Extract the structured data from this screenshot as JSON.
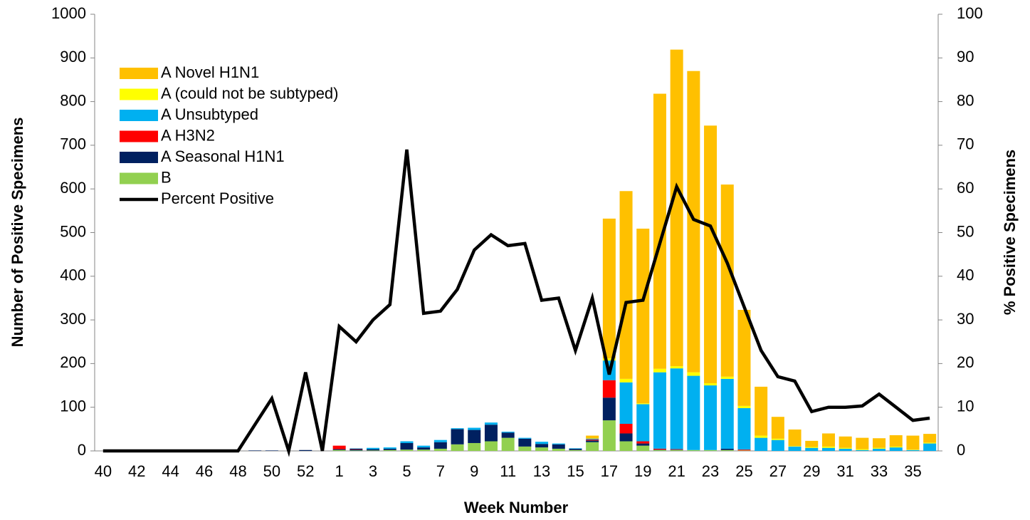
{
  "chart_data": {
    "type": "bar-line",
    "x_label": "Week Number",
    "y_label": "Number of Positive Specimens",
    "y2_label": "% Positive Specimens",
    "categories": [
      "40",
      null,
      "42",
      null,
      "44",
      null,
      "46",
      null,
      "48",
      null,
      "50",
      null,
      "52",
      null,
      "1",
      null,
      "3",
      null,
      "5",
      null,
      "7",
      null,
      "9",
      null,
      "11",
      null,
      "13",
      null,
      "15",
      null,
      "17",
      null,
      "19",
      null,
      "21",
      null,
      "23",
      null,
      "25",
      null,
      "27",
      null,
      "29",
      null,
      "31",
      null,
      "33",
      null,
      "35",
      null
    ],
    "ylim": [
      0,
      1000
    ],
    "yticks": [
      0,
      100,
      200,
      300,
      400,
      500,
      600,
      700,
      800,
      900,
      1000
    ],
    "y2lim": [
      0,
      100
    ],
    "y2ticks": [
      0,
      10,
      20,
      30,
      40,
      50,
      60,
      70,
      80,
      90,
      100
    ],
    "stacked": true,
    "legend": "upper left",
    "series": [
      {
        "name": "A Novel H1N1",
        "color": "#FFC000",
        "kind": "bar",
        "values": [
          0,
          0,
          0,
          0,
          0,
          0,
          0,
          0,
          0,
          0,
          0,
          0,
          0,
          0,
          0,
          0,
          0,
          0,
          0,
          0,
          0,
          0,
          0,
          0,
          0,
          0,
          0,
          0,
          0,
          7,
          320,
          430,
          400,
          630,
          725,
          690,
          590,
          440,
          220,
          112,
          50,
          38,
          14,
          30,
          26,
          26,
          22,
          26,
          32,
          20
        ]
      },
      {
        "name": "A (could not be subtyped)",
        "color": "#FFFF00",
        "kind": "bar",
        "values": [
          0,
          0,
          0,
          0,
          0,
          0,
          0,
          0,
          0,
          0,
          0,
          0,
          0,
          0,
          0,
          0,
          0,
          0,
          0,
          0,
          0,
          0,
          0,
          0,
          0,
          0,
          0,
          0,
          0,
          0,
          5,
          8,
          2,
          8,
          5,
          8,
          5,
          5,
          5,
          5,
          3,
          1,
          2,
          3,
          2,
          2,
          2,
          2,
          1,
          2
        ]
      },
      {
        "name": "A Unsubtyped",
        "color": "#00B0F0",
        "kind": "bar",
        "values": [
          0,
          0,
          0,
          0,
          0,
          0,
          0,
          0,
          0,
          0,
          0,
          0,
          0,
          0,
          0,
          1,
          3,
          3,
          4,
          4,
          5,
          2,
          5,
          5,
          2,
          2,
          5,
          2,
          1,
          2,
          45,
          95,
          85,
          175,
          185,
          170,
          148,
          160,
          95,
          30,
          25,
          10,
          7,
          7,
          5,
          2,
          5,
          8,
          2,
          17
        ]
      },
      {
        "name": "A H3N2",
        "color": "#FF0000",
        "kind": "bar",
        "values": [
          0,
          0,
          0,
          0,
          0,
          0,
          0,
          0,
          0,
          0,
          0,
          0,
          0,
          0,
          8,
          1,
          0,
          0,
          0,
          0,
          0,
          0,
          0,
          0,
          0,
          0,
          0,
          0,
          0,
          2,
          40,
          22,
          5,
          2,
          1,
          0,
          0,
          0,
          2,
          0,
          0,
          0,
          0,
          0,
          0,
          0,
          0,
          0,
          0,
          0
        ]
      },
      {
        "name": "A Seasonal H1N1",
        "color": "#002060",
        "kind": "bar",
        "values": [
          0,
          0,
          0,
          0,
          0,
          0,
          0,
          0,
          0,
          1,
          1,
          0,
          2,
          0,
          2,
          3,
          3,
          3,
          15,
          5,
          15,
          35,
          30,
          38,
          12,
          18,
          8,
          10,
          3,
          4,
          52,
          18,
          5,
          1,
          1,
          0,
          0,
          3,
          0,
          0,
          0,
          0,
          0,
          0,
          0,
          0,
          0,
          0,
          0,
          0
        ]
      },
      {
        "name": "B",
        "color": "#92D050",
        "kind": "bar",
        "values": [
          0,
          0,
          0,
          0,
          0,
          0,
          0,
          0,
          0,
          0,
          0,
          0,
          0,
          0,
          2,
          1,
          1,
          2,
          3,
          3,
          5,
          15,
          18,
          22,
          30,
          10,
          8,
          5,
          2,
          20,
          70,
          22,
          12,
          2,
          2,
          2,
          2,
          2,
          1,
          0,
          0,
          0,
          0,
          0,
          0,
          0,
          0,
          0,
          0,
          0
        ]
      },
      {
        "name": "Percent Positive",
        "color": "#000000",
        "kind": "line",
        "axis": "y2",
        "values": [
          0,
          0,
          0,
          0,
          0,
          0,
          0,
          0,
          0,
          6,
          12,
          0,
          18,
          0,
          28.5,
          25,
          30,
          33.5,
          69,
          31.5,
          32,
          37,
          46,
          49.5,
          47,
          47.5,
          34.5,
          35,
          23,
          35,
          17.5,
          34,
          34.5,
          47.5,
          60.5,
          53,
          51.5,
          43,
          33,
          23,
          17,
          16,
          9,
          10,
          10,
          10.3,
          13,
          10,
          7,
          7.5
        ]
      }
    ]
  }
}
